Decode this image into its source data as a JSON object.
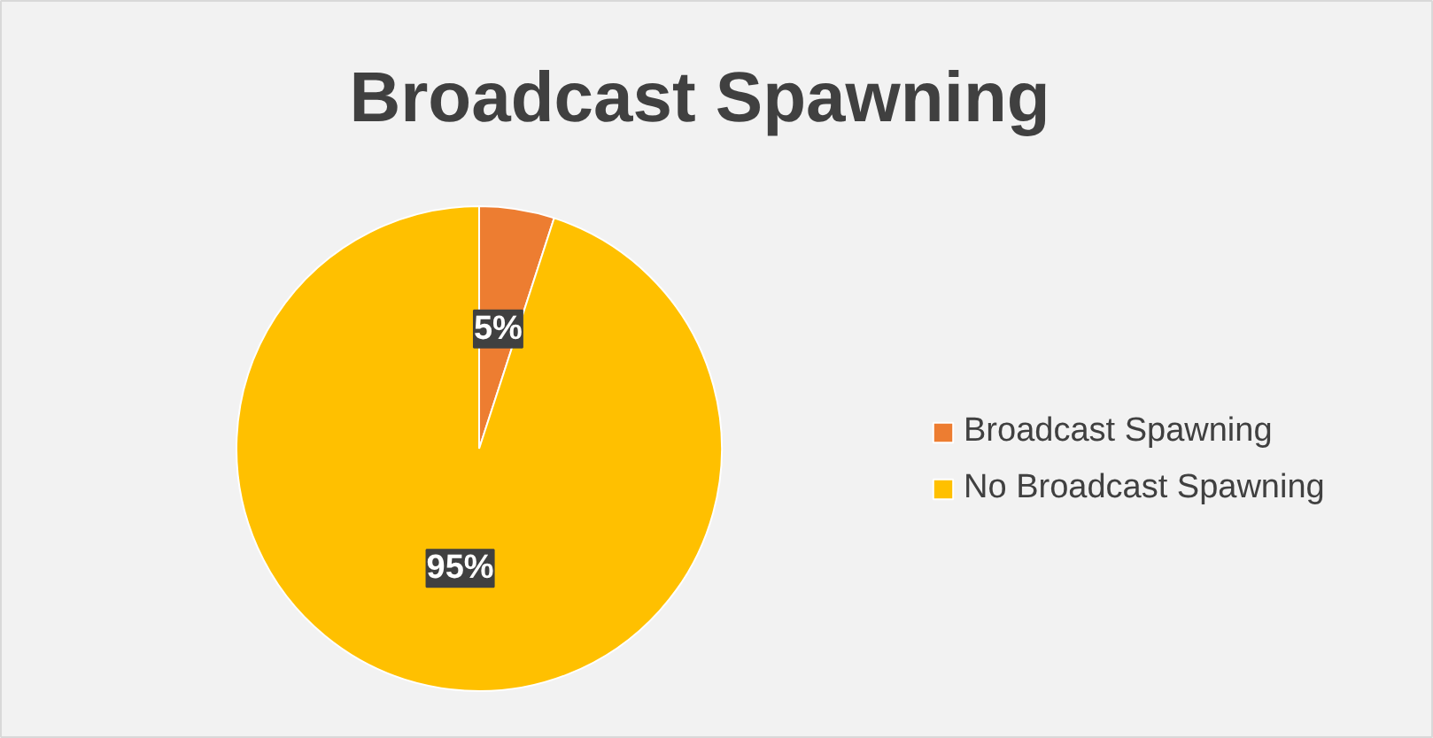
{
  "chart_data": {
    "type": "pie",
    "title": "Broadcast Spawning",
    "categories": [
      "Broadcast Spawning",
      "No Broadcast Spawning"
    ],
    "values": [
      5,
      95
    ],
    "colors": [
      "#ed7d31",
      "#ffc000"
    ],
    "value_labels": [
      "5%",
      "95%"
    ],
    "legend": "right"
  }
}
